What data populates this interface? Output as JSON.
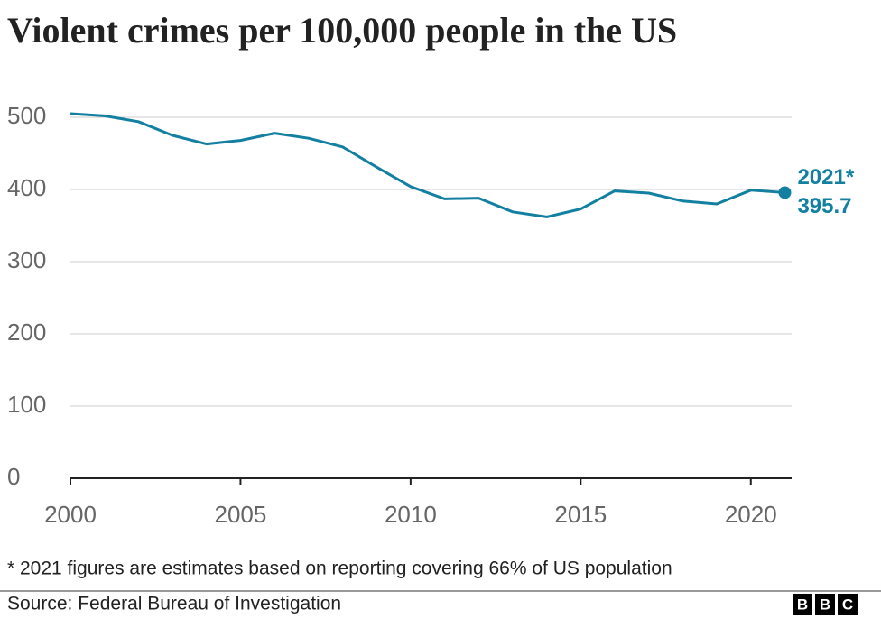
{
  "chart_data": {
    "type": "line",
    "title": "Violent crimes per 100,000 people in the US",
    "x": [
      2000,
      2001,
      2002,
      2003,
      2004,
      2005,
      2006,
      2007,
      2008,
      2009,
      2010,
      2011,
      2012,
      2013,
      2014,
      2015,
      2016,
      2017,
      2018,
      2019,
      2020,
      2021
    ],
    "series": [
      {
        "name": "Violent crimes per 100,000 people",
        "color": "#1380a1",
        "values": [
          505,
          502,
          494,
          475,
          463,
          468,
          478,
          471,
          459,
          431,
          404,
          387,
          388,
          369,
          362,
          373,
          398,
          395,
          384,
          380,
          399,
          395.7
        ]
      }
    ],
    "annotation": "2021*",
    "xlim": [
      2000,
      2021.2
    ],
    "xticks": [
      2000,
      2005,
      2010,
      2015,
      2020
    ],
    "ylim": [
      0,
      500
    ],
    "yticks": [
      0,
      100,
      200,
      300,
      400,
      500
    ],
    "grid": true,
    "footnote": "* 2021 figures are estimates based on reporting covering 66% of US population",
    "source": "Source: Federal Bureau of Investigation",
    "logo": [
      "B",
      "B",
      "C"
    ]
  }
}
